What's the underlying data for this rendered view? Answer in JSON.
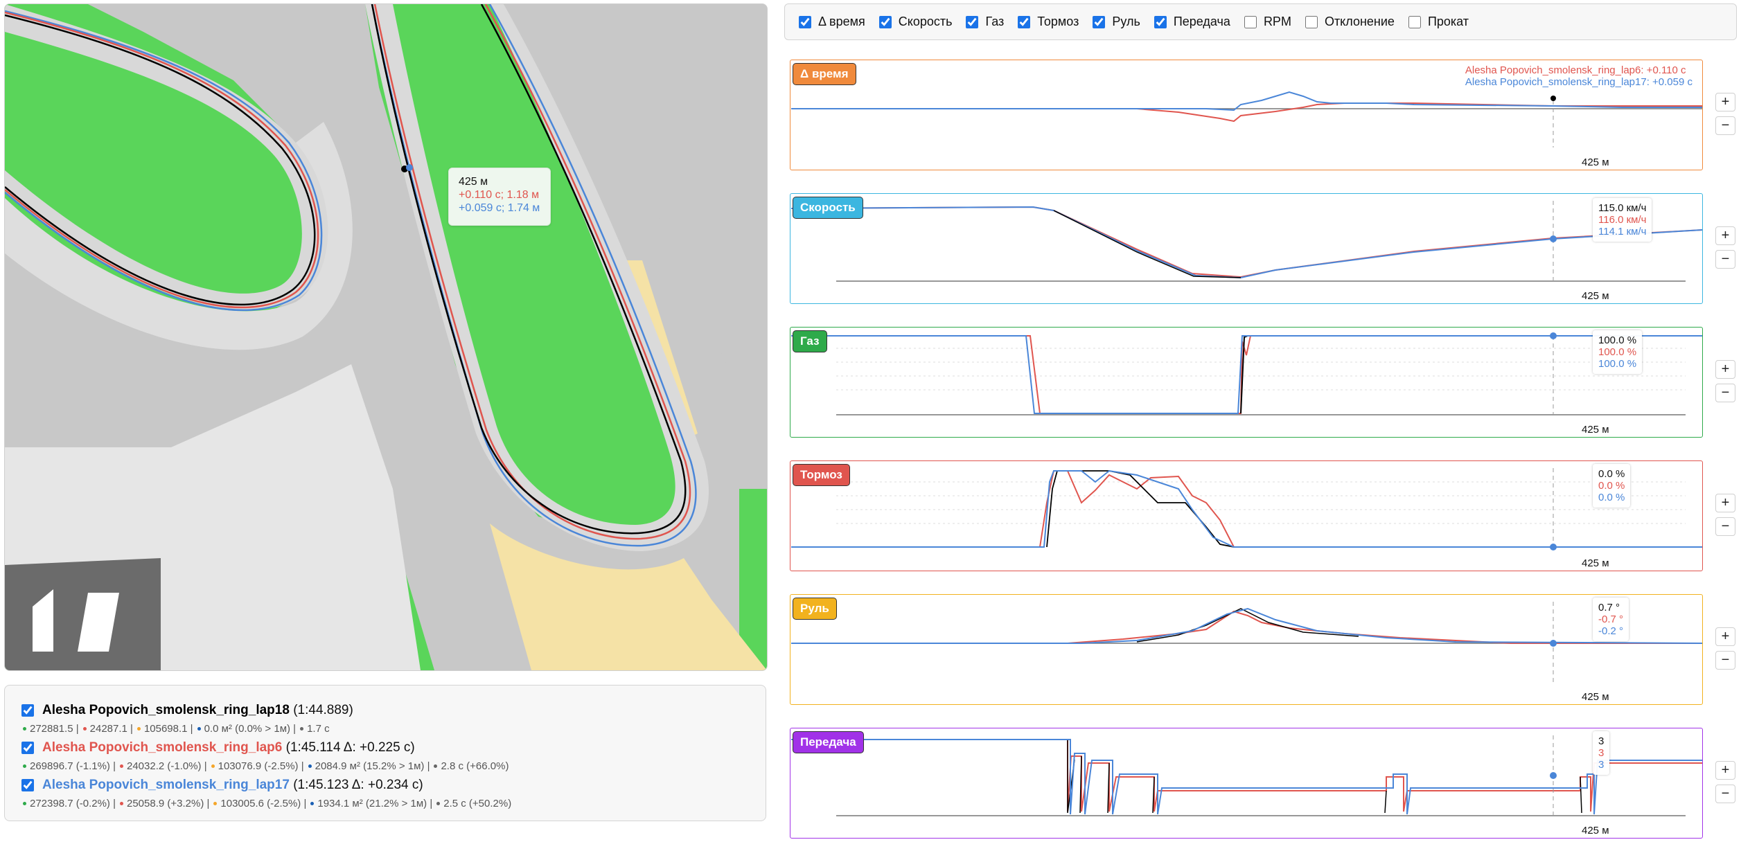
{
  "colors": {
    "lap18": "#000000",
    "lap6": "#e0554e",
    "lap17": "#4a86d8"
  },
  "map": {
    "tooltip": {
      "distance": "425 м",
      "line_red": "+0.110 с; 1.18 м",
      "line_blue": "+0.059 с; 1.74 м"
    }
  },
  "toolbar": {
    "checkboxes": [
      {
        "label": "Δ время",
        "checked": true
      },
      {
        "label": "Скорость",
        "checked": true
      },
      {
        "label": "Газ",
        "checked": true
      },
      {
        "label": "Тормоз",
        "checked": true
      },
      {
        "label": "Руль",
        "checked": true
      },
      {
        "label": "Передача",
        "checked": true
      },
      {
        "label": "RPM",
        "checked": false
      },
      {
        "label": "Отклонение",
        "checked": false
      },
      {
        "label": "Прокат",
        "checked": false
      }
    ]
  },
  "laps": [
    {
      "name": "Alesha Popovich_smolensk_ring_lap18",
      "time": "(1:44.889)",
      "stats": [
        {
          "color": "#2eaa4a",
          "text": "272881.5 |"
        },
        {
          "color": "#e0554e",
          "text": "24287.1 |"
        },
        {
          "color": "#f4a52a",
          "text": "105698.1 |"
        },
        {
          "color": "#1a5fb4",
          "text": "0.0 м² (0.0% > 1м) |"
        },
        {
          "color": "#666666",
          "text": "1.7 с"
        }
      ]
    },
    {
      "name": "Alesha Popovich_smolensk_ring_lap6",
      "time": "(1:45.114 Δ: +0.225 с)",
      "stats": [
        {
          "color": "#2eaa4a",
          "text": "269896.7 (-1.1%) |"
        },
        {
          "color": "#e0554e",
          "text": "24032.2 (-1.0%) |"
        },
        {
          "color": "#f4a52a",
          "text": "103076.9 (-2.5%) |"
        },
        {
          "color": "#1a5fb4",
          "text": "2084.9 м² (15.2% > 1м) |"
        },
        {
          "color": "#666666",
          "text": "2.8 с (+66.0%)"
        }
      ]
    },
    {
      "name": "Alesha Popovich_smolensk_ring_lap17",
      "time": "(1:45.123 Δ: +0.234 с)",
      "stats": [
        {
          "color": "#2eaa4a",
          "text": "272398.7 (-0.2%) |"
        },
        {
          "color": "#e0554e",
          "text": "25058.9 (+3.2%) |"
        },
        {
          "color": "#f4a52a",
          "text": "103005.6 (-2.5%) |"
        },
        {
          "color": "#1a5fb4",
          "text": "1934.1 м² (21.2% > 1м) |"
        },
        {
          "color": "#666666",
          "text": "2.5 с (+50.2%)"
        }
      ]
    }
  ],
  "panels": {
    "delta": {
      "title": "Δ время",
      "border": "#f08a3c",
      "xlabel": "425 м",
      "legend_red": "Alesha Popovich_smolensk_ring_lap6: +0.110 с",
      "legend_blue": "Alesha Popovich_smolensk_ring_lap17: +0.059 с"
    },
    "speed": {
      "title": "Скорость",
      "border": "#3bb6e0",
      "xlabel": "425 м",
      "v_black": "115.0 км/ч",
      "v_red": "116.0 км/ч",
      "v_blue": "114.1 км/ч"
    },
    "gas": {
      "title": "Газ",
      "border": "#2eaa4a",
      "xlabel": "425 м",
      "v_black": "100.0 %",
      "v_red": "100.0 %",
      "v_blue": "100.0 %"
    },
    "brake": {
      "title": "Тормоз",
      "border": "#e0554e",
      "xlabel": "425 м",
      "v_black": "0.0 %",
      "v_red": "0.0 %",
      "v_blue": "0.0 %"
    },
    "steer": {
      "title": "Руль",
      "border": "#f2b21e",
      "xlabel": "425 м",
      "v_black": "0.7 °",
      "v_red": "-0.7 °",
      "v_blue": "-0.2 °"
    },
    "gear": {
      "title": "Передача",
      "border": "#a132e8",
      "xlabel": "425 м",
      "v_black": "3",
      "v_red": "3",
      "v_blue": "3"
    }
  },
  "zoom": {
    "plus": "+",
    "minus": "−"
  }
}
